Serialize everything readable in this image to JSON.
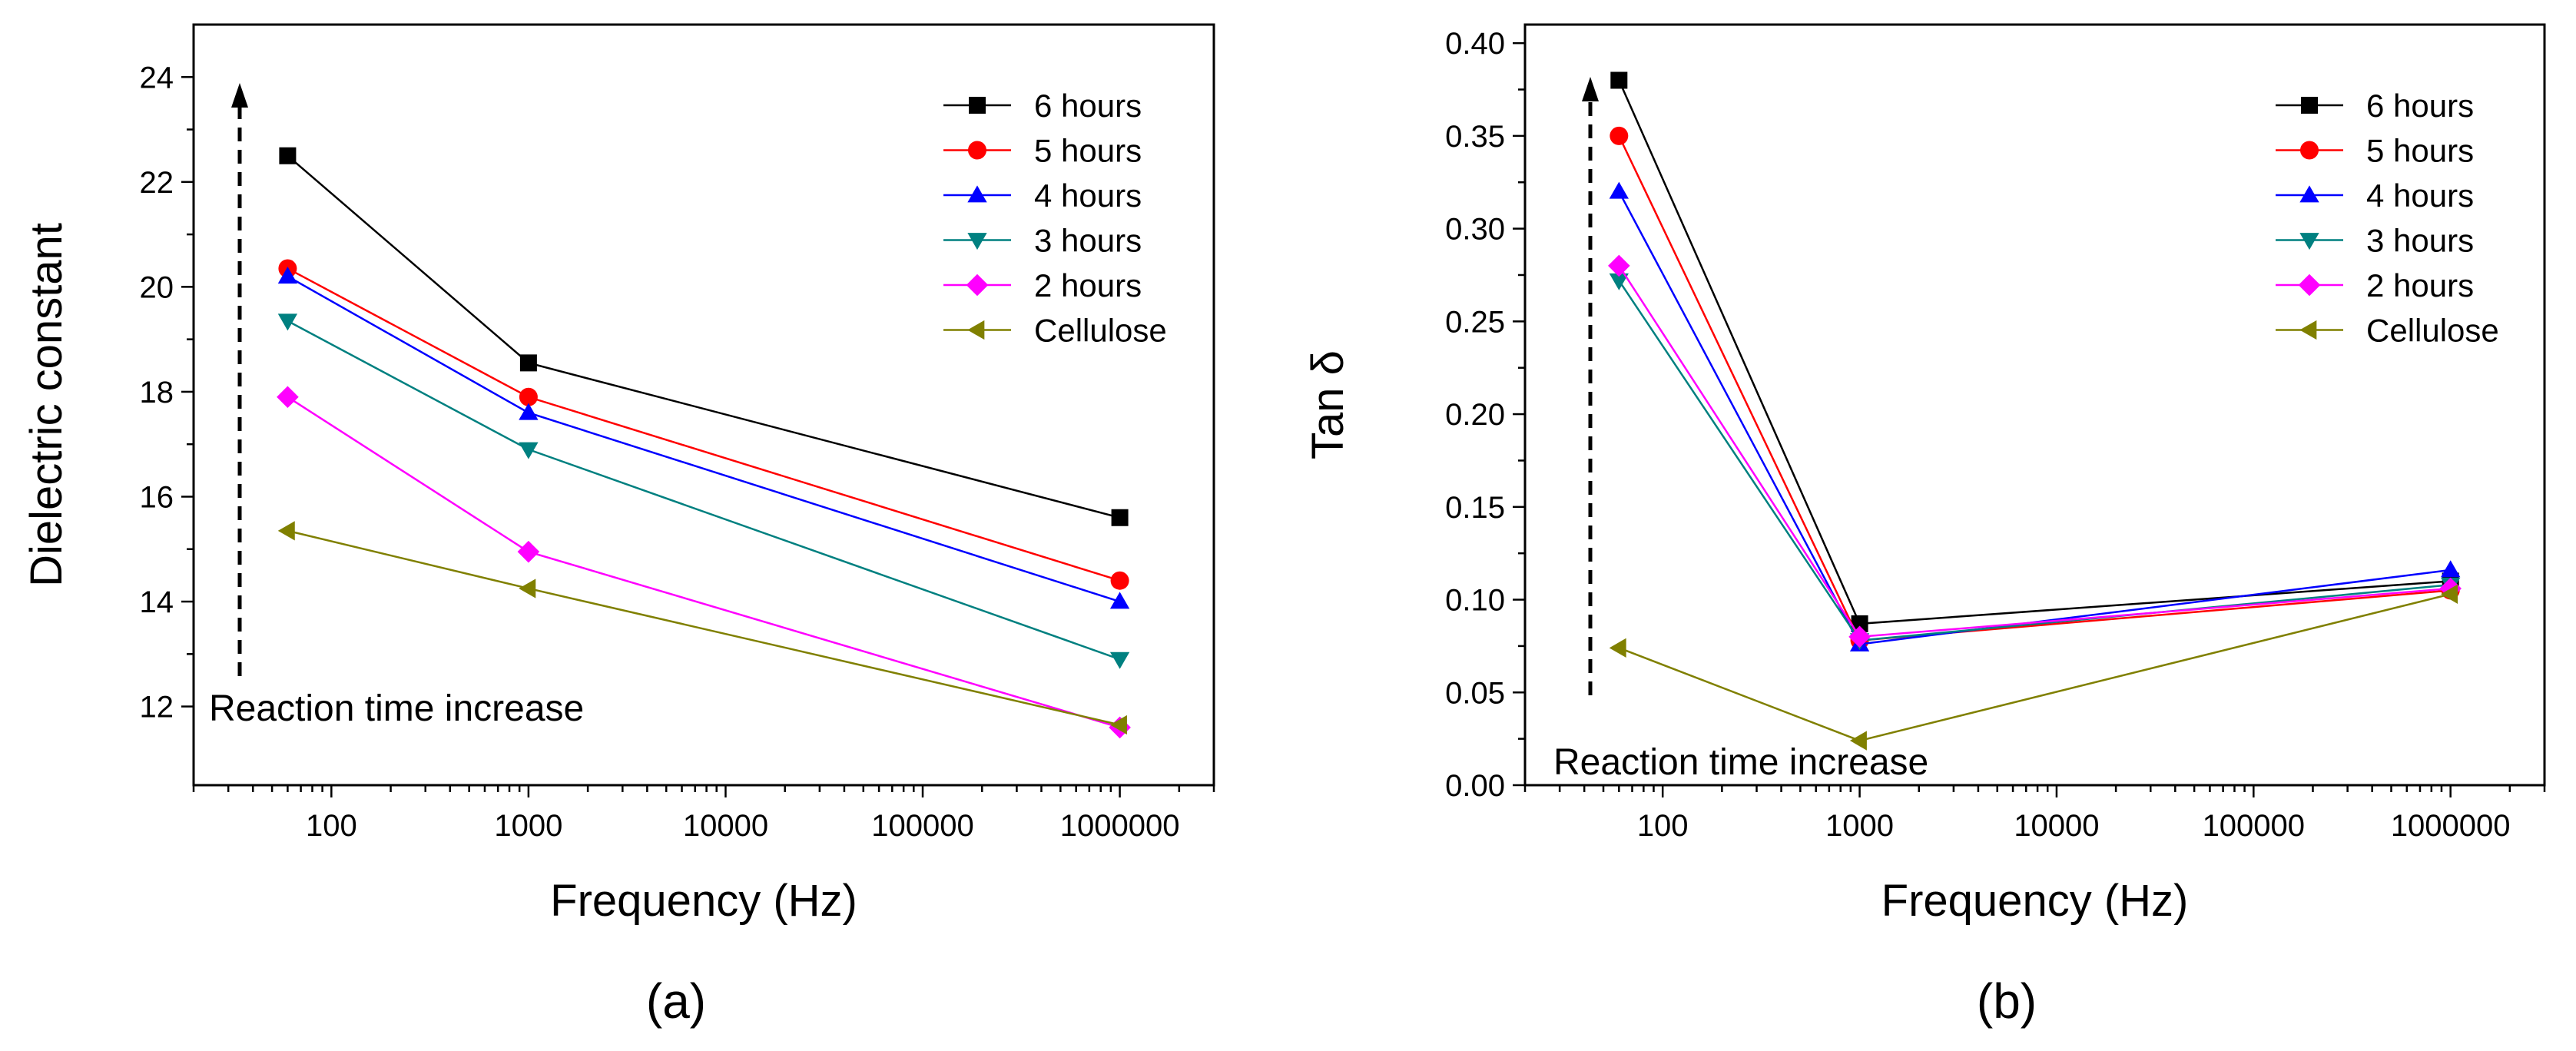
{
  "chart_data": [
    {
      "panel_label": "(a)",
      "type": "line",
      "x_scale": "log",
      "xlabel": "Frequency (Hz)",
      "ylabel": "Dielectric constant",
      "xlim": [
        20,
        3000000
      ],
      "ylim": [
        10.5,
        25
      ],
      "x_ticks": [
        100,
        1000,
        10000,
        100000,
        1000000
      ],
      "x_tick_labels": [
        "100",
        "1000",
        "10000",
        "100000",
        "1000000"
      ],
      "y_ticks": [
        12,
        14,
        16,
        18,
        20,
        22,
        24
      ],
      "y_tick_labels": [
        "12",
        "14",
        "16",
        "18",
        "20",
        "22",
        "24"
      ],
      "x": [
        60,
        1000,
        1000000
      ],
      "series": [
        {
          "name": "6 hours",
          "marker": "square",
          "color": "#000000",
          "values": [
            22.5,
            18.55,
            15.6
          ]
        },
        {
          "name": "5 hours",
          "marker": "circle",
          "color": "#ff0000",
          "values": [
            20.35,
            17.9,
            14.4
          ]
        },
        {
          "name": "4 hours",
          "marker": "triangle-up",
          "color": "#0000ff",
          "values": [
            20.2,
            17.6,
            14.0
          ]
        },
        {
          "name": "3 hours",
          "marker": "triangle-down",
          "color": "#008080",
          "values": [
            19.35,
            16.9,
            12.9
          ]
        },
        {
          "name": "2 hours",
          "marker": "diamond",
          "color": "#ff00ff",
          "values": [
            17.9,
            14.95,
            11.6
          ]
        },
        {
          "name": "Cellulose",
          "marker": "triangle-left",
          "color": "#808000",
          "values": [
            15.35,
            14.25,
            11.65
          ]
        }
      ],
      "annotation": "Reaction time increase",
      "legend_position": "top-right",
      "grid": false
    },
    {
      "panel_label": "(b)",
      "type": "line",
      "x_scale": "log",
      "xlabel": "Frequency (Hz)",
      "ylabel": "Tan δ",
      "xlim": [
        20,
        3000000
      ],
      "ylim": [
        0.0,
        0.41
      ],
      "x_ticks": [
        100,
        1000,
        10000,
        100000,
        1000000
      ],
      "x_tick_labels": [
        "100",
        "1000",
        "10000",
        "100000",
        "1000000"
      ],
      "y_ticks": [
        0.0,
        0.05,
        0.1,
        0.15,
        0.2,
        0.25,
        0.3,
        0.35,
        0.4
      ],
      "y_tick_labels": [
        "0.00",
        "0.05",
        "0.10",
        "0.15",
        "0.20",
        "0.25",
        "0.30",
        "0.35",
        "0.40"
      ],
      "x": [
        60,
        1000,
        1000000
      ],
      "series": [
        {
          "name": "6 hours",
          "marker": "square",
          "color": "#000000",
          "values": [
            0.38,
            0.087,
            0.11
          ]
        },
        {
          "name": "5 hours",
          "marker": "circle",
          "color": "#ff0000",
          "values": [
            0.35,
            0.078,
            0.105
          ]
        },
        {
          "name": "4 hours",
          "marker": "triangle-up",
          "color": "#0000ff",
          "values": [
            0.32,
            0.076,
            0.116
          ]
        },
        {
          "name": "3 hours",
          "marker": "triangle-down",
          "color": "#008080",
          "values": [
            0.272,
            0.078,
            0.108
          ]
        },
        {
          "name": "2 hours",
          "marker": "diamond",
          "color": "#ff00ff",
          "values": [
            0.28,
            0.08,
            0.106
          ]
        },
        {
          "name": "Cellulose",
          "marker": "triangle-left",
          "color": "#808000",
          "values": [
            0.074,
            0.024,
            0.103
          ]
        }
      ],
      "annotation": "Reaction time increase",
      "legend_position": "top-right",
      "grid": false
    }
  ]
}
